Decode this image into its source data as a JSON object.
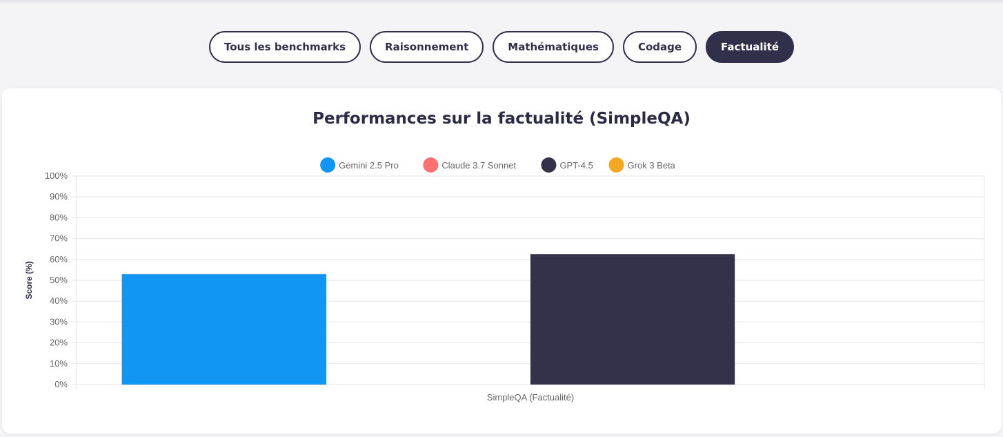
{
  "filters": [
    {
      "label": "Tous les benchmarks",
      "active": false
    },
    {
      "label": "Raisonnement",
      "active": false
    },
    {
      "label": "Mathématiques",
      "active": false
    },
    {
      "label": "Codage",
      "active": false
    },
    {
      "label": "Factualité",
      "active": true
    }
  ],
  "colors": {
    "accent": "#31304a",
    "gemini": "#1196f3",
    "claude": "#ff7070",
    "gpt": "#34324b",
    "grok": "#f5a623",
    "grid": "#e5e5e5"
  },
  "chart_data": {
    "type": "bar",
    "title": "Performances sur la factualité (SimpleQA)",
    "xlabel": "",
    "ylabel": "Score (%)",
    "categories": [
      "SimpleQA (Factualité)"
    ],
    "ylim": [
      0,
      100
    ],
    "yticks": [
      "0%",
      "10%",
      "20%",
      "30%",
      "40%",
      "50%",
      "60%",
      "70%",
      "80%",
      "90%",
      "100%"
    ],
    "grid": true,
    "legend_position": "top",
    "series": [
      {
        "name": "Gemini 2.5 Pro",
        "color": "#1196f3",
        "values": [
          52.9
        ]
      },
      {
        "name": "Claude 3.7 Sonnet",
        "color": "#ff7070",
        "values": [
          null
        ]
      },
      {
        "name": "GPT-4.5",
        "color": "#34324b",
        "values": [
          62.5
        ]
      },
      {
        "name": "Grok 3 Beta",
        "color": "#f5a623",
        "values": [
          null
        ]
      }
    ]
  }
}
